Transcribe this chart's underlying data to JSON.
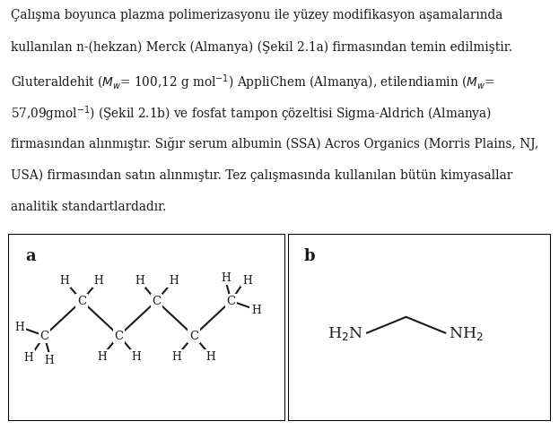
{
  "background_color": "#ffffff",
  "text_color": "#1a1a1a",
  "line_color": "#1a1a1a",
  "panel_a_label": "a",
  "panel_b_label": "b",
  "fig_width": 6.23,
  "fig_height": 4.81,
  "dpi": 100,
  "text_fontsize": 9.8,
  "label_fontsize": 13,
  "paragraph_lines": [
    "Çalışma boyunca plazma polimerizasyonu ile yüzey modifikasyon aşamalarında",
    "kullanılan n-(hekzan) Merck (Almanya) (Şekil 2.1a) firmasından temin edilmiştir.",
    "Gluteraldehit ($\\it{M_w}$= 100,12 g mol$^{-1}$) AppliChem (Almanya), etilendiamin ($\\it{M_w}$=",
    "57,09gmol$^{-1}$) (Şekil 2.1b) ve fosfat tampon çözeltisi Sigma-Aldrich (Almanya)",
    "firmasından alınmıştır. Sığır serum albumin (SSA) Acros Organics (Morris Plains, NJ,",
    "USA) firmasından satın alınmıştır. Tez çalışmasında kullanılan bütün kimyasallar",
    "analitik standartlardadır."
  ]
}
